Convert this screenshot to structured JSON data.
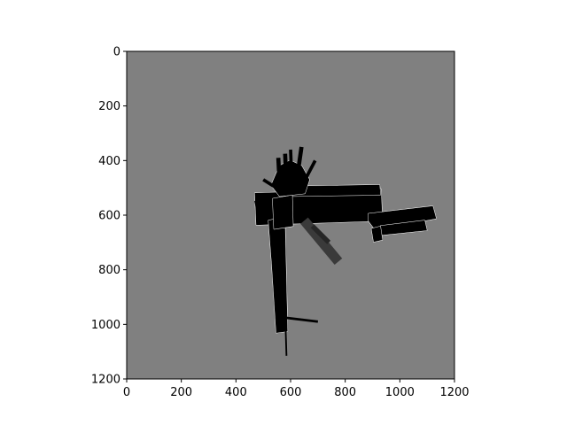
{
  "chart_data": {
    "type": "heatmap",
    "title": "",
    "xlabel": "",
    "ylabel": "",
    "xlim": [
      0,
      1200
    ],
    "ylim": [
      1200,
      0
    ],
    "xticks": [
      0,
      200,
      400,
      600,
      800,
      1000,
      1200
    ],
    "yticks": [
      0,
      200,
      400,
      600,
      800,
      1000,
      1200
    ],
    "grid": false,
    "colors": {
      "background": "#808080",
      "occupied": "#000000",
      "dark_gray": "#3a3a3a",
      "edge": "#ffffff",
      "axes": "#000000"
    },
    "occupied_regions": [
      {
        "name": "horizontal-corridor-main",
        "points": [
          [
            470,
            520
          ],
          [
            930,
            505
          ],
          [
            935,
            620
          ],
          [
            475,
            635
          ]
        ]
      },
      {
        "name": "horizontal-corridor-upper",
        "points": [
          [
            585,
            495
          ],
          [
            925,
            490
          ],
          [
            928,
            525
          ],
          [
            585,
            530
          ]
        ]
      },
      {
        "name": "east-room",
        "points": [
          [
            885,
            595
          ],
          [
            1120,
            568
          ],
          [
            1132,
            612
          ],
          [
            980,
            640
          ],
          [
            918,
            680
          ],
          [
            908,
            650
          ],
          [
            885,
            620
          ]
        ]
      },
      {
        "name": "east-room-extension",
        "points": [
          [
            930,
            640
          ],
          [
            1090,
            620
          ],
          [
            1098,
            655
          ],
          [
            935,
            672
          ]
        ]
      },
      {
        "name": "east-small-block",
        "points": [
          [
            897,
            650
          ],
          [
            928,
            642
          ],
          [
            935,
            690
          ],
          [
            905,
            697
          ]
        ]
      },
      {
        "name": "vertical-corridor",
        "points": [
          [
            520,
            620
          ],
          [
            578,
            608
          ],
          [
            588,
            1025
          ],
          [
            548,
            1030
          ],
          [
            532,
            780
          ]
        ]
      },
      {
        "name": "vertical-corridor-upper",
        "points": [
          [
            535,
            540
          ],
          [
            605,
            528
          ],
          [
            608,
            640
          ],
          [
            540,
            650
          ]
        ]
      },
      {
        "name": "northwest-fan",
        "points": [
          [
            530,
            490
          ],
          [
            560,
            420
          ],
          [
            598,
            400
          ],
          [
            640,
            420
          ],
          [
            668,
            470
          ],
          [
            652,
            520
          ],
          [
            560,
            530
          ]
        ]
      }
    ],
    "occupied_strokes": [
      {
        "name": "south-tail",
        "from": [
          582,
          1020
        ],
        "to": [
          585,
          1115
        ],
        "width": 2,
        "color": "#000000"
      },
      {
        "name": "southeast-spur",
        "from": [
          575,
          975
        ],
        "to": [
          700,
          990
        ],
        "width": 3,
        "color": "#000000"
      },
      {
        "name": "north-spike-1",
        "from": [
          560,
          490
        ],
        "to": [
          555,
          390
        ],
        "width": 5,
        "color": "#000000"
      },
      {
        "name": "north-spike-2",
        "from": [
          585,
          490
        ],
        "to": [
          580,
          375
        ],
        "width": 5,
        "color": "#000000"
      },
      {
        "name": "north-spike-3",
        "from": [
          620,
          490
        ],
        "to": [
          640,
          350
        ],
        "width": 5,
        "color": "#000000"
      },
      {
        "name": "north-spike-4",
        "from": [
          640,
          495
        ],
        "to": [
          690,
          400
        ],
        "width": 4,
        "color": "#000000"
      },
      {
        "name": "north-spike-5",
        "from": [
          605,
          495
        ],
        "to": [
          600,
          360
        ],
        "width": 4,
        "color": "#000000"
      },
      {
        "name": "northwest-spike",
        "from": [
          580,
          520
        ],
        "to": [
          500,
          470
        ],
        "width": 4,
        "color": "#000000"
      },
      {
        "name": "west-stub",
        "from": [
          470,
          560
        ],
        "to": [
          530,
          548
        ],
        "width": 8,
        "color": "#000000"
      },
      {
        "name": "diagonal-trace",
        "from": [
          650,
          620
        ],
        "to": [
          775,
          770
        ],
        "width": 12,
        "color": "#3a3a3a"
      },
      {
        "name": "diagonal-trace-2",
        "from": [
          680,
          640
        ],
        "to": [
          740,
          700
        ],
        "width": 6,
        "color": "#262626"
      }
    ]
  }
}
